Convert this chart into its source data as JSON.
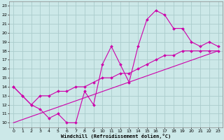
{
  "xlabel": "Windchill (Refroidissement éolien,°C)",
  "background_color": "#cce8e8",
  "grid_color": "#aacccc",
  "line_color": "#cc00aa",
  "xlim": [
    -0.5,
    23.5
  ],
  "ylim": [
    9.5,
    23.5
  ],
  "xticks": [
    0,
    1,
    2,
    3,
    4,
    5,
    6,
    7,
    8,
    9,
    10,
    11,
    12,
    13,
    14,
    15,
    16,
    17,
    18,
    19,
    20,
    21,
    22,
    23
  ],
  "yticks": [
    10,
    11,
    12,
    13,
    14,
    15,
    16,
    17,
    18,
    19,
    20,
    21,
    22,
    23
  ],
  "line1_x": [
    0,
    1,
    2,
    3,
    4,
    5,
    6,
    7,
    8,
    9,
    10,
    11,
    12,
    13,
    14,
    15,
    16,
    17,
    18,
    19,
    20,
    21,
    22,
    23
  ],
  "line1_y": [
    14,
    13,
    12,
    11.5,
    10.5,
    11,
    10,
    10,
    13.5,
    12,
    16.5,
    18.5,
    16.5,
    14.5,
    18.5,
    21.5,
    22.5,
    22,
    20.5,
    20.5,
    19,
    18.5,
    19,
    18.5
  ],
  "line2_x": [
    0,
    1,
    2,
    3,
    4,
    5,
    6,
    7,
    8,
    9,
    10,
    11,
    12,
    13,
    14,
    15,
    16,
    17,
    18,
    19,
    20,
    21,
    22,
    23
  ],
  "line2_y": [
    14,
    13,
    12,
    13,
    13,
    13.5,
    13.5,
    14,
    14,
    14.5,
    15,
    15,
    15.5,
    15.5,
    16,
    16.5,
    17,
    17.5,
    17.5,
    18,
    18,
    18,
    18,
    18
  ],
  "line3_x": [
    0,
    23
  ],
  "line3_y": [
    10,
    18
  ]
}
